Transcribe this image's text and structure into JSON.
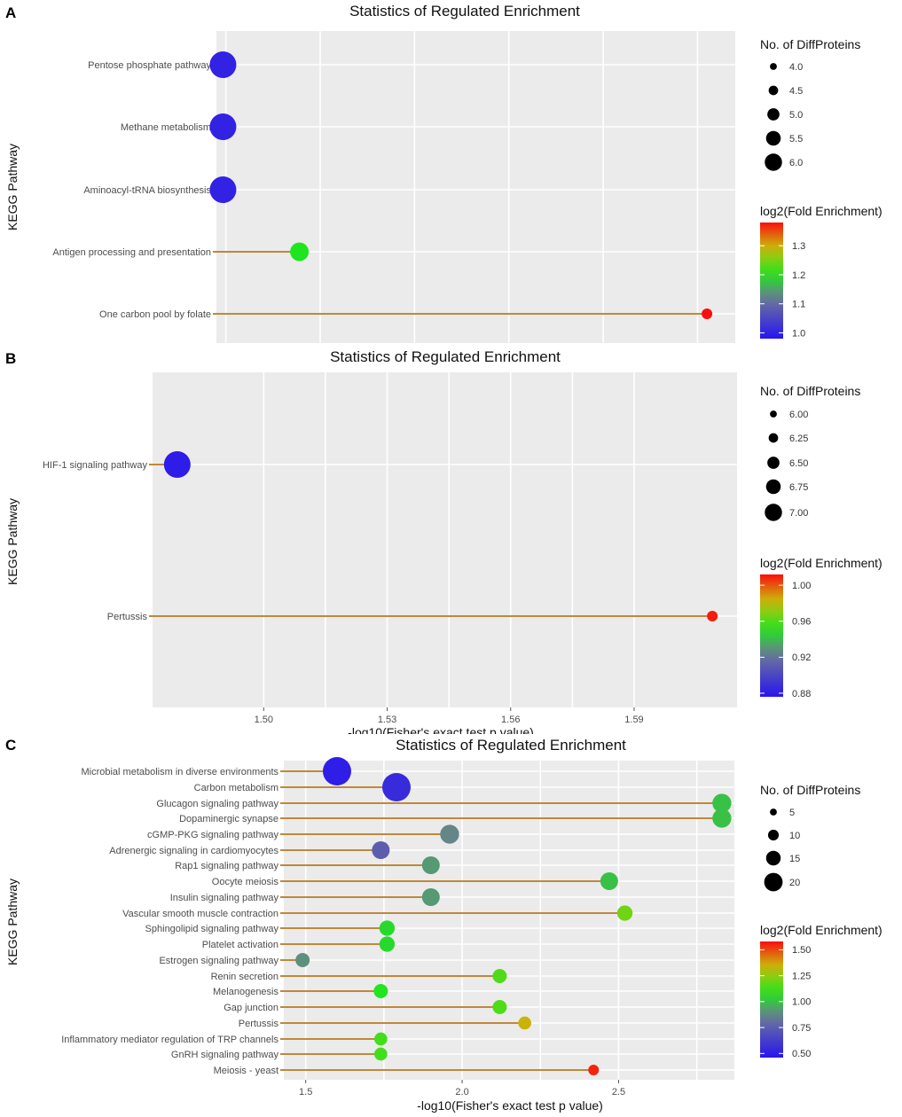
{
  "chart_data": [
    {
      "panel": "A",
      "type": "scatter",
      "title": "Statistics of Regulated Enrichment",
      "ylabel": "KEGG Pathway",
      "xlabel": "",
      "xlim": [
        1.6,
        2.15
      ],
      "categories": [
        "Pentose phosphate pathway",
        "Methane metabolism",
        "Aminoacyl-tRNA biosynthesis",
        "Antigen processing and presentation",
        "One carbon pool by folate"
      ],
      "x": [
        1.607,
        1.607,
        1.607,
        1.688,
        2.12
      ],
      "size": [
        6,
        6,
        6,
        5,
        4
      ],
      "color": [
        1.0,
        1.0,
        1.0,
        1.2,
        1.38
      ],
      "size_legend": {
        "title": "No. of DiffProteins",
        "labels": [
          "4.0",
          "4.5",
          "5.0",
          "5.5",
          "6.0"
        ],
        "values": [
          4.0,
          4.5,
          5.0,
          5.5,
          6.0
        ]
      },
      "color_legend": {
        "title": "log2(Fold Enrichment)",
        "labels": [
          "1.3",
          "1.2",
          "1.1",
          "1.0"
        ],
        "values": [
          1.3,
          1.2,
          1.1,
          1.0
        ],
        "range": [
          0.98,
          1.38
        ]
      }
    },
    {
      "panel": "B",
      "type": "scatter",
      "title": "Statistics of Regulated Enrichment",
      "ylabel": "KEGG Pathway",
      "xlabel": "-log10(Fisher's exact test p value)",
      "xlim": [
        1.473,
        1.615
      ],
      "x_ticks": [
        1.5,
        1.53,
        1.56,
        1.59
      ],
      "x_tick_labels": [
        "1.50",
        "1.53",
        "1.56",
        "1.59"
      ],
      "categories": [
        "HIF-1 signaling pathway",
        "Pertussis"
      ],
      "x": [
        1.479,
        1.609
      ],
      "size": [
        7,
        6
      ],
      "color": [
        0.88,
        1.01
      ],
      "size_legend": {
        "title": "No. of DiffProteins",
        "labels": [
          "6.00",
          "6.25",
          "6.50",
          "6.75",
          "7.00"
        ],
        "values": [
          6.0,
          6.25,
          6.5,
          6.75,
          7.0
        ]
      },
      "color_legend": {
        "title": "log2(Fold Enrichment)",
        "labels": [
          "1.00",
          "0.96",
          "0.92",
          "0.88"
        ],
        "values": [
          1.0,
          0.96,
          0.92,
          0.88
        ],
        "range": [
          0.876,
          1.012
        ]
      }
    },
    {
      "panel": "C",
      "type": "scatter",
      "title": "Statistics of Regulated Enrichment",
      "ylabel": "KEGG Pathway",
      "xlabel": "-log10(Fisher's exact test p value)",
      "xlim": [
        1.43,
        2.87
      ],
      "x_ticks": [
        1.5,
        2.0,
        2.5
      ],
      "x_tick_labels": [
        "1.5",
        "2.0",
        "2.5"
      ],
      "categories": [
        "Microbial metabolism in diverse environments",
        "Carbon metabolism",
        "Glucagon signaling pathway",
        "Dopaminergic synapse",
        "cGMP-PKG signaling pathway",
        "Adrenergic signaling in cardiomyocytes",
        "Rap1 signaling pathway",
        "Oocyte meiosis",
        "Insulin signaling pathway",
        "Vascular smooth muscle contraction",
        "Sphingolipid signaling pathway",
        "Platelet activation",
        "Estrogen signaling pathway",
        "Renin secretion",
        "Melanogenesis",
        "Gap junction",
        "Pertussis",
        "Inflammatory mediator regulation of TRP channels",
        "GnRH signaling pathway",
        "Meiosis - yeast"
      ],
      "x": [
        1.6,
        1.79,
        2.83,
        2.83,
        1.96,
        1.74,
        1.9,
        2.47,
        1.9,
        2.52,
        1.76,
        1.76,
        1.49,
        2.12,
        1.74,
        2.12,
        2.2,
        1.74,
        1.74,
        2.42
      ],
      "size": [
        20,
        20,
        12,
        12,
        12,
        11,
        11,
        11,
        11,
        9,
        9,
        9,
        8,
        8,
        8,
        8,
        7,
        7,
        7,
        5
      ],
      "color": [
        0.5,
        0.55,
        1.0,
        1.0,
        0.88,
        0.75,
        0.92,
        1.0,
        0.92,
        1.2,
        1.05,
        1.05,
        0.9,
        1.15,
        1.08,
        1.15,
        1.35,
        1.13,
        1.13,
        1.55
      ],
      "size_legend": {
        "title": "No. of DiffProteins",
        "labels": [
          "5",
          "10",
          "15",
          "20"
        ],
        "values": [
          5,
          10,
          15,
          20
        ]
      },
      "color_legend": {
        "title": "log2(Fold Enrichment)",
        "labels": [
          "1.50",
          "1.25",
          "1.00",
          "0.75",
          "0.50"
        ],
        "values": [
          1.5,
          1.25,
          1.0,
          0.75,
          0.5
        ],
        "range": [
          0.46,
          1.58
        ]
      }
    }
  ]
}
